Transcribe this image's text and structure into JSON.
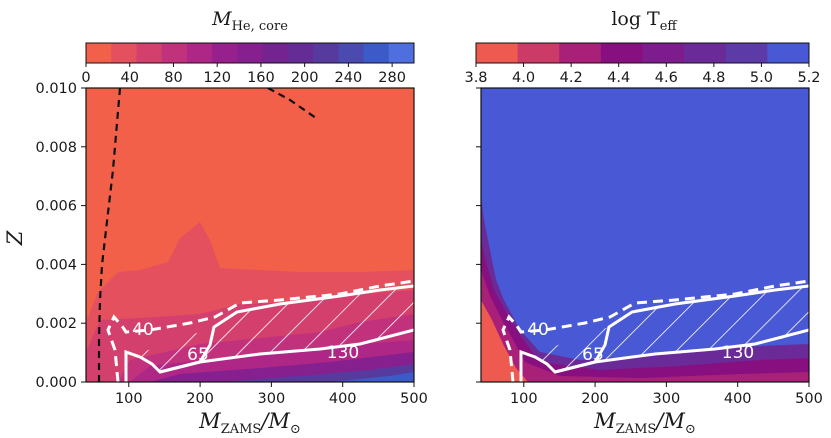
{
  "chart_data": [
    {
      "type": "heatmap",
      "panel": "left",
      "title": "M_He,core",
      "title_main": "M",
      "title_sub": "He, core",
      "xlabel_main": "M",
      "xlabel_sub": "ZAMS",
      "xlabel_rest": "/M",
      "xlabel_sub2": "⊙",
      "ylabel": "Z",
      "xlim": [
        40,
        500
      ],
      "ylim": [
        0,
        0.01
      ],
      "xticks": [
        "100",
        "200",
        "300",
        "400",
        "500"
      ],
      "yticks": [
        "0.000",
        "0.002",
        "0.004",
        "0.006",
        "0.008",
        "0.010"
      ],
      "colorbar": {
        "ticks": [
          "0",
          "40",
          "80",
          "120",
          "160",
          "200",
          "240",
          "280"
        ],
        "range": [
          0,
          300
        ],
        "colors": [
          "#f2604a",
          "#e4505d",
          "#d4406e",
          "#c2327c",
          "#ae2686",
          "#98208d",
          "#86208f",
          "#73248f",
          "#652c95",
          "#573a9e",
          "#4b4ab0",
          "#3d5bc8",
          "#4f6fe0"
        ]
      },
      "contours": [
        {
          "label": "40",
          "style": "dashed",
          "color": "#ffffff"
        },
        {
          "label": "65",
          "style": "solid",
          "color": "#ffffff"
        },
        {
          "label": "130",
          "style": "solid",
          "color": "#ffffff"
        }
      ],
      "black_dashed_lines": 2
    },
    {
      "type": "heatmap",
      "panel": "right",
      "title": "log T_eff",
      "title_main": "log T",
      "title_sub": "eff",
      "xlabel_main": "M",
      "xlabel_sub": "ZAMS",
      "xlabel_rest": "/M",
      "xlabel_sub2": "⊙",
      "xlim": [
        40,
        500
      ],
      "ylim": [
        0,
        0.01
      ],
      "xticks": [
        "100",
        "200",
        "300",
        "400",
        "500"
      ],
      "colorbar": {
        "ticks": [
          "3.8",
          "4.0",
          "4.2",
          "4.4",
          "4.6",
          "4.8",
          "5.0",
          "5.2"
        ],
        "range": [
          3.8,
          5.2
        ],
        "colors": [
          "#ee5a4f",
          "#cc3a67",
          "#a82078",
          "#870f80",
          "#7d1c8c",
          "#6a2a98",
          "#5c3aa8",
          "#4958d4"
        ]
      },
      "contours": [
        {
          "label": "40",
          "style": "dashed",
          "color": "#ffffff"
        },
        {
          "label": "65",
          "style": "solid",
          "color": "#ffffff"
        },
        {
          "label": "130",
          "style": "solid",
          "color": "#ffffff"
        }
      ]
    }
  ]
}
